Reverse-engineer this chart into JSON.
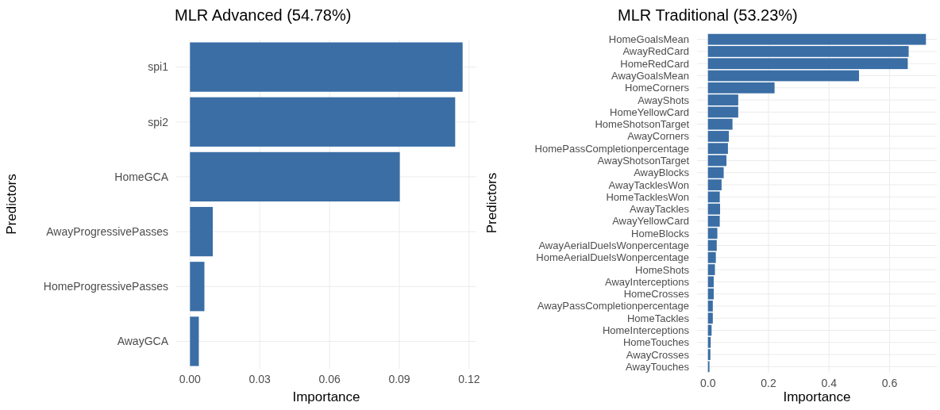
{
  "chart_data": [
    {
      "type": "bar",
      "orientation": "horizontal",
      "title": "MLR Advanced (54.78%)",
      "xlabel": "Importance",
      "ylabel": "Predictors",
      "grid": true,
      "categories": [
        "spi1",
        "spi2",
        "HomeGCA",
        "AwayProgressivePasses",
        "HomeProgressivePasses",
        "AwayGCA"
      ],
      "values": [
        0.1172,
        0.114,
        0.0902,
        0.0098,
        0.0062,
        0.0038
      ],
      "color": "#3a6ea5",
      "xlim": [
        -0.0059,
        0.1231
      ],
      "xticks": [
        {
          "value": 0,
          "label": "0.00"
        },
        {
          "value": 0.03,
          "label": "0.03"
        },
        {
          "value": 0.06,
          "label": "0.06"
        },
        {
          "value": 0.09,
          "label": "0.09"
        },
        {
          "value": 0.12,
          "label": "0.12"
        }
      ]
    },
    {
      "type": "bar",
      "orientation": "horizontal",
      "title": "MLR Traditional (53.23%)",
      "xlabel": "Importance",
      "ylabel": "Predictors",
      "grid": true,
      "categories": [
        "HomeGoalsMean",
        "AwayRedCard",
        "HomeRedCard",
        "AwayGoalsMean",
        "HomeCorners",
        "AwayShots",
        "HomeYellowCard",
        "HomeShotsonTarget",
        "AwayCorners",
        "HomePassCompletionpercentage",
        "AwayShotsonTarget",
        "AwayBlocks",
        "AwayTacklesWon",
        "HomeTacklesWon",
        "AwayTackles",
        "AwayYellowCard",
        "HomeBlocks",
        "AwayAerialDuelsWonpercentage",
        "HomeAerialDuelsWonpercentage",
        "HomeShots",
        "AwayInterceptions",
        "HomeCrosses",
        "AwayPassCompletionpercentage",
        "HomeTackles",
        "HomeInterceptions",
        "HomeTouches",
        "AwayCrosses",
        "AwayTouches"
      ],
      "values": [
        0.72,
        0.663,
        0.66,
        0.499,
        0.22,
        0.1,
        0.1,
        0.081,
        0.069,
        0.066,
        0.061,
        0.052,
        0.045,
        0.039,
        0.04,
        0.039,
        0.031,
        0.029,
        0.026,
        0.023,
        0.019,
        0.019,
        0.016,
        0.016,
        0.012,
        0.009,
        0.008,
        0.005
      ],
      "color": "#3a6ea5",
      "xlim": [
        -0.036,
        0.756
      ],
      "xticks": [
        {
          "value": 0,
          "label": "0.0"
        },
        {
          "value": 0.2,
          "label": "0.2"
        },
        {
          "value": 0.4,
          "label": "0.4"
        },
        {
          "value": 0.6,
          "label": "0.6"
        }
      ]
    }
  ]
}
